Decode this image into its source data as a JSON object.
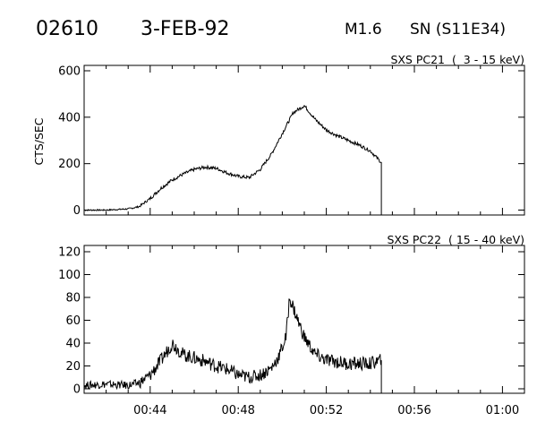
{
  "header": {
    "event_id": "02610",
    "date": "3-FEB-92",
    "flare_class": "M1.6",
    "location": "SN (S11E34)"
  },
  "chart_data": [
    {
      "type": "line",
      "title": "SXS PC21  (  3 - 15 keV)",
      "xlabel": "",
      "ylabel": "CTS/SEC",
      "ylim": [
        0,
        600
      ],
      "yticks": [
        0,
        200,
        400,
        600
      ],
      "xlim": [
        "00:41",
        "01:01"
      ],
      "x_tick_labels": [],
      "grid": false,
      "series": [
        {
          "x": [
            "00:41:00",
            "00:42:00",
            "00:43:00",
            "00:43:30",
            "00:44:00",
            "00:44:30",
            "00:45:00",
            "00:45:30",
            "00:46:00",
            "00:46:30",
            "00:47:00",
            "00:47:30",
            "00:48:00",
            "00:48:30",
            "00:49:00",
            "00:49:30",
            "00:50:00",
            "00:50:30",
            "00:51:00",
            "00:51:30",
            "00:52:00",
            "00:52:30",
            "00:53:00",
            "00:53:30",
            "00:54:00",
            "00:54:30"
          ],
          "values": [
            0,
            0,
            5,
            15,
            50,
            95,
            130,
            155,
            175,
            185,
            180,
            160,
            145,
            140,
            175,
            240,
            330,
            420,
            450,
            390,
            345,
            320,
            300,
            280,
            255,
            205
          ]
        }
      ]
    },
    {
      "type": "line",
      "title": "SXS PC22  ( 15 - 40 keV)",
      "xlabel": "",
      "ylabel": "",
      "ylim": [
        0,
        120
      ],
      "yticks": [
        0,
        20,
        40,
        60,
        80,
        100,
        120
      ],
      "xlim": [
        "00:41",
        "01:01"
      ],
      "x_tick_labels": [
        "00:44",
        "00:48",
        "00:52",
        "00:56",
        "01:00"
      ],
      "grid": false,
      "series": [
        {
          "x": [
            "00:41:00",
            "00:42:00",
            "00:43:00",
            "00:43:30",
            "00:44:00",
            "00:44:30",
            "00:45:00",
            "00:45:30",
            "00:46:00",
            "00:46:30",
            "00:47:00",
            "00:47:30",
            "00:48:00",
            "00:48:30",
            "00:49:00",
            "00:49:30",
            "00:49:50",
            "00:50:10",
            "00:50:20",
            "00:50:40",
            "00:51:00",
            "00:51:30",
            "00:52:00",
            "00:53:00",
            "00:54:00",
            "00:54:30"
          ],
          "values": [
            3,
            4,
            3,
            5,
            12,
            25,
            40,
            30,
            27,
            24,
            20,
            17,
            12,
            10,
            12,
            18,
            28,
            45,
            80,
            62,
            45,
            30,
            25,
            22,
            22,
            25
          ]
        }
      ]
    }
  ]
}
